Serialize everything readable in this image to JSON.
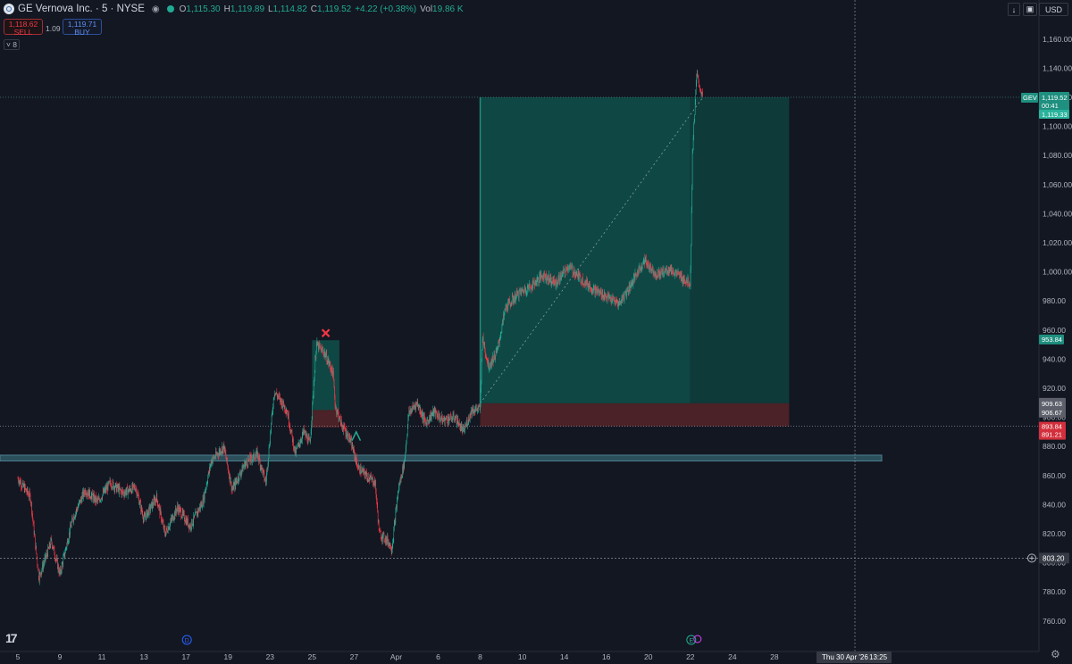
{
  "header": {
    "title": "GE Vernova Inc. · 5 · NYSE",
    "ohlc": [
      {
        "k": "O",
        "v": "1,115.30"
      },
      {
        "k": "H",
        "v": "1,119.89"
      },
      {
        "k": "L",
        "v": "1,114.82"
      },
      {
        "k": "C",
        "v": "1,119.52"
      }
    ],
    "change": "+4.22 (+0.38%)",
    "vol_label": "Vol",
    "vol_value": "19.86 K",
    "eye_icon": "eye-icon"
  },
  "trade": {
    "sell_price": "1,118.62",
    "sell_label": "SELL",
    "buy_price": "1,119.71",
    "buy_label": "BUY",
    "spread": "1.09"
  },
  "indicator_count": "8",
  "toolbar": {
    "currency": "USD",
    "download_icon": "arrow-down-icon",
    "screenshot_icon": "camera-icon"
  },
  "colors": {
    "bg": "#131722",
    "up": "#22ab94",
    "down": "#f23645",
    "target": "#0f4744",
    "target2": "#0e3b3a",
    "stop": "#4b2227",
    "zone": "#2c4f5c",
    "text": "#b2b5be"
  },
  "chart_data": {
    "type": "candlestick",
    "symbol": "GEV",
    "y_ticks": [
      1160,
      1140,
      1120,
      1100,
      1080,
      1060,
      1040,
      1020,
      1000,
      980,
      960,
      940,
      920,
      900,
      880,
      860,
      840,
      820,
      800,
      780,
      760
    ],
    "y_tick_labels": [
      "1,160.00",
      "1,140.00",
      "1,120.00",
      "1,100.00",
      "1,080.00",
      "1,060.00",
      "1,040.00",
      "1,020.00",
      "1,000.00",
      "980.00",
      "960.00",
      "940.00",
      "920.00",
      "900.00",
      "880.00",
      "860.00",
      "840.00",
      "820.00",
      "800.00",
      "780.00",
      "760.00"
    ],
    "x_ticks": [
      {
        "label": "5",
        "slot": 0
      },
      {
        "label": "9",
        "slot": 1
      },
      {
        "label": "11",
        "slot": 2
      },
      {
        "label": "13",
        "slot": 3
      },
      {
        "label": "17",
        "slot": 4
      },
      {
        "label": "19",
        "slot": 5
      },
      {
        "label": "23",
        "slot": 6
      },
      {
        "label": "25",
        "slot": 7
      },
      {
        "label": "27",
        "slot": 8
      },
      {
        "label": "Apr",
        "slot": 9
      },
      {
        "label": "6",
        "slot": 10
      },
      {
        "label": "8",
        "slot": 11
      },
      {
        "label": "10",
        "slot": 12
      },
      {
        "label": "14",
        "slot": 13
      },
      {
        "label": "16",
        "slot": 14
      },
      {
        "label": "20",
        "slot": 15
      },
      {
        "label": "22",
        "slot": 16
      },
      {
        "label": "24",
        "slot": 17
      },
      {
        "label": "28",
        "slot": 18
      }
    ],
    "cursor_date": "Thu 30 Apr '26",
    "cursor_time": "13:25",
    "cursor_price": "803.20",
    "price_path": [
      [
        0,
        858
      ],
      [
        0.3,
        845
      ],
      [
        0.5,
        790
      ],
      [
        0.8,
        815
      ],
      [
        1.0,
        792
      ],
      [
        1.3,
        830
      ],
      [
        1.6,
        850
      ],
      [
        1.9,
        842
      ],
      [
        2.2,
        855
      ],
      [
        2.5,
        848
      ],
      [
        2.8,
        852
      ],
      [
        3.0,
        830
      ],
      [
        3.3,
        845
      ],
      [
        3.5,
        820
      ],
      [
        3.8,
        838
      ],
      [
        4.1,
        825
      ],
      [
        4.4,
        842
      ],
      [
        4.6,
        870
      ],
      [
        4.9,
        880
      ],
      [
        5.1,
        850
      ],
      [
        5.4,
        868
      ],
      [
        5.7,
        875
      ],
      [
        5.9,
        855
      ],
      [
        6.1,
        918
      ],
      [
        6.4,
        905
      ],
      [
        6.6,
        875
      ],
      [
        6.8,
        890
      ],
      [
        6.95,
        882
      ],
      [
        7.1,
        950
      ],
      [
        7.3,
        944
      ],
      [
        7.5,
        930
      ],
      [
        7.55,
        908
      ],
      [
        7.7,
        895
      ],
      [
        7.9,
        885
      ],
      [
        8.1,
        865
      ],
      [
        8.3,
        860
      ],
      [
        8.5,
        855
      ],
      [
        8.6,
        820
      ],
      [
        8.8,
        815
      ],
      [
        8.9,
        810
      ],
      [
        9.05,
        850
      ],
      [
        9.2,
        870
      ],
      [
        9.3,
        903
      ],
      [
        9.5,
        910
      ],
      [
        9.7,
        896
      ],
      [
        9.9,
        904
      ],
      [
        10.1,
        898
      ],
      [
        10.4,
        900
      ],
      [
        10.6,
        890
      ],
      [
        10.8,
        905
      ],
      [
        11.0,
        906
      ],
      [
        11.05,
        955
      ],
      [
        11.2,
        935
      ],
      [
        11.4,
        945
      ],
      [
        11.6,
        975
      ],
      [
        11.9,
        985
      ],
      [
        12.2,
        990
      ],
      [
        12.5,
        998
      ],
      [
        12.8,
        992
      ],
      [
        13.1,
        1004
      ],
      [
        13.4,
        995
      ],
      [
        13.7,
        988
      ],
      [
        14.0,
        983
      ],
      [
        14.3,
        978
      ],
      [
        14.6,
        992
      ],
      [
        14.9,
        1008
      ],
      [
        15.2,
        998
      ],
      [
        15.5,
        1002
      ],
      [
        15.8,
        996
      ],
      [
        16.0,
        992
      ],
      [
        16.05,
        1082
      ],
      [
        16.15,
        1135
      ],
      [
        16.3,
        1119
      ]
    ],
    "positions": [
      {
        "type": "long",
        "start_slot": 7.0,
        "end_slot": 7.65,
        "entry": 905,
        "target": 953,
        "stop": 893,
        "result": "stop-hit"
      },
      {
        "type": "long",
        "start_slot": 11.0,
        "end_slot": 18.35,
        "entry": 909.63,
        "target": 1120,
        "stop": 893.84,
        "result": "target-hit"
      }
    ],
    "support_zone": {
      "low": 870,
      "high": 874
    },
    "price_labels": [
      {
        "text": "GEV",
        "kind": "symbol"
      },
      {
        "text": "1,119.52",
        "kind": "last",
        "value": 1119.52
      },
      {
        "text": "00:41",
        "kind": "countdown"
      },
      {
        "text": "1,119.33",
        "kind": "bid",
        "value": 1119.33
      },
      {
        "text": "953.84",
        "kind": "target",
        "value": 953.84
      },
      {
        "text": "909.63",
        "kind": "entry",
        "value": 909.63
      },
      {
        "text": "906.67",
        "kind": "entry2",
        "value": 906.67
      },
      {
        "text": "893.84",
        "kind": "stop",
        "value": 893.84
      },
      {
        "text": "891.21",
        "kind": "stop2",
        "value": 891.21
      }
    ],
    "event_markers": [
      {
        "text": "D",
        "slot": 4.0,
        "kind": "dividend"
      },
      {
        "text": "E",
        "slot": 16.0,
        "kind": "earnings"
      }
    ]
  }
}
